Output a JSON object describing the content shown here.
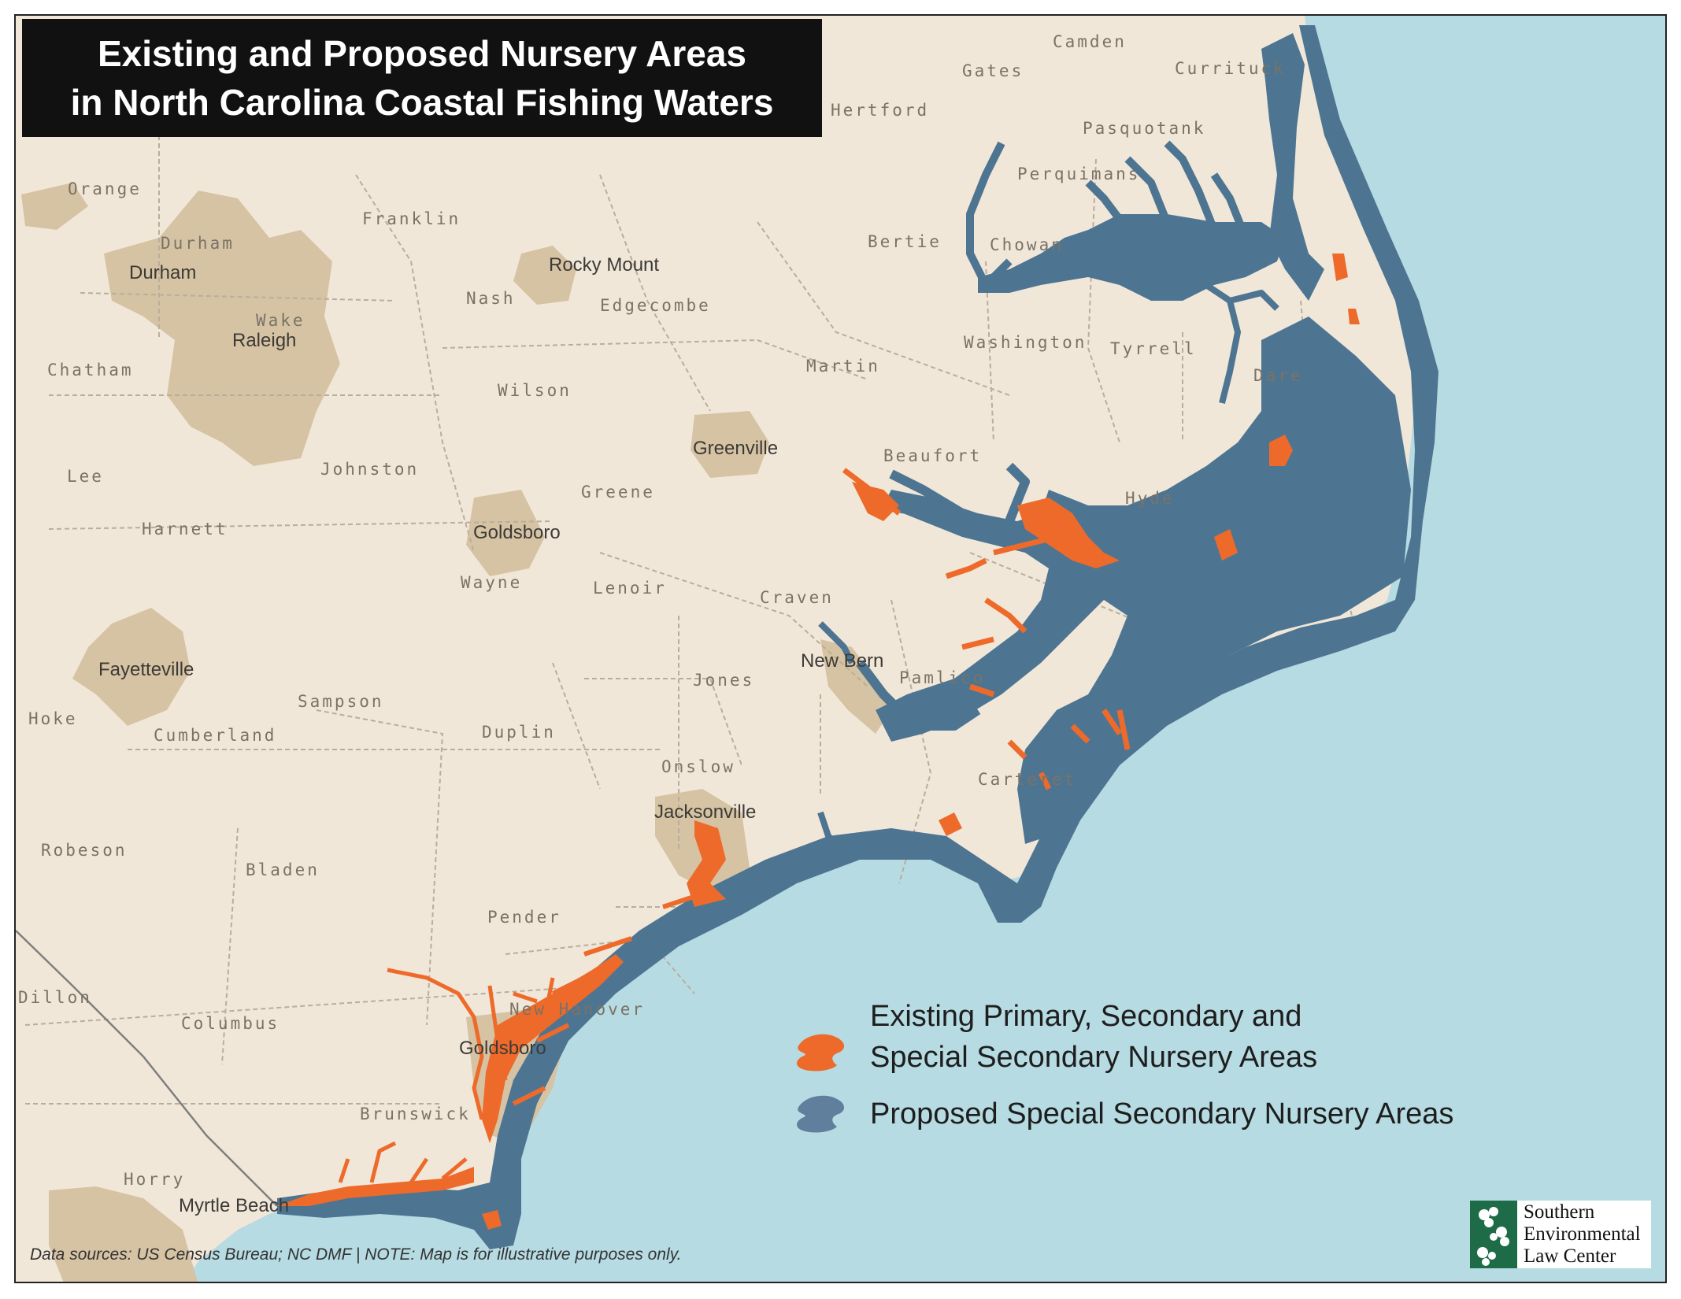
{
  "title": {
    "line1": "Existing and Proposed Nursery Areas",
    "line2": "in North Carolina Coastal Fishing Waters"
  },
  "colors": {
    "ocean": "#b6dbe2",
    "land": "#f1e7d9",
    "urban": "#d6c3a3",
    "existing_nursery": "#ee6a2a",
    "proposed_nursery": "#4d7592",
    "legend_proposed": "#5f7f9c",
    "county_border": "#b9ad9d",
    "state_border": "#7f7f7f"
  },
  "counties": [
    "Camden",
    "Gates",
    "Currituck",
    "Hertford",
    "Pasquotank",
    "Perquimans",
    "Orange",
    "Durham",
    "Franklin",
    "Bertie",
    "Chowan",
    "Nash",
    "Edgecombe",
    "Wake",
    "Washington",
    "Tyrrell",
    "Chatham",
    "Martin",
    "Dare",
    "Wilson",
    "Johnston",
    "Beaufort",
    "Lee",
    "Greene",
    "Hyde",
    "Harnett",
    "Wayne",
    "Lenoir",
    "Craven",
    "Jones",
    "Pamlico",
    "Hoke",
    "Sampson",
    "Cumberland",
    "Duplin",
    "Onslow",
    "Carteret",
    "Robeson",
    "Bladen",
    "Pender",
    "Dillon",
    "Columbus",
    "New Hanover",
    "Brunswick",
    "Horry"
  ],
  "cities": [
    "Durham",
    "Raleigh",
    "Rocky Mount",
    "Greenville",
    "Goldsboro",
    "Fayetteville",
    "New Bern",
    "Jacksonville",
    "Goldsboro",
    "Myrtle Beach"
  ],
  "legend": {
    "existing_line1": "Existing Primary, Secondary and",
    "existing_line2": "Special Secondary Nursery Areas",
    "proposed": "Proposed Special Secondary Nursery Areas"
  },
  "sources": "Data sources: US Census Bureau; NC DMF | NOTE: Map is for illustrative purposes only.",
  "logo": {
    "line1": "Southern",
    "line2": "Environmental",
    "line3": "Law Center"
  }
}
